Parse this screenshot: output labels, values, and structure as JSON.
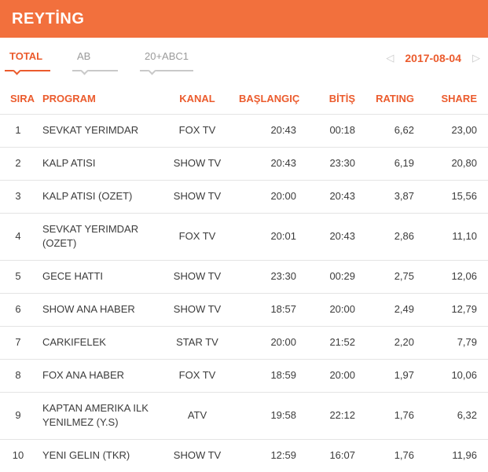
{
  "colors": {
    "header_bg": "#F2703D",
    "accent": "#EB5B2D",
    "inactive_tab": "#9B9B9B",
    "row_text": "#3C3C3C",
    "divider": "#E4E4E4"
  },
  "header": {
    "title": "REYTİNG"
  },
  "tabs": [
    {
      "label": "TOTAL",
      "active": true
    },
    {
      "label": "AB",
      "active": false
    },
    {
      "label": "20+ABC1",
      "active": false
    }
  ],
  "date_nav": {
    "prev_icon": "◁",
    "date": "2017-08-04",
    "next_icon": "▷"
  },
  "table": {
    "columns": [
      "SIRA",
      "PROGRAM",
      "KANAL",
      "BAŞLANGIÇ",
      "BİTİŞ",
      "RATING",
      "SHARE"
    ],
    "rows": [
      {
        "sira": "1",
        "program": "SEVKAT YERIMDAR",
        "kanal": "FOX TV",
        "baslangic": "20:43",
        "bitis": "00:18",
        "rating": "6,62",
        "share": "23,00"
      },
      {
        "sira": "2",
        "program": "KALP ATISI",
        "kanal": "SHOW TV",
        "baslangic": "20:43",
        "bitis": "23:30",
        "rating": "6,19",
        "share": "20,80"
      },
      {
        "sira": "3",
        "program": "KALP ATISI (OZET)",
        "kanal": "SHOW TV",
        "baslangic": "20:00",
        "bitis": "20:43",
        "rating": "3,87",
        "share": "15,56"
      },
      {
        "sira": "4",
        "program": "SEVKAT YERIMDAR (OZET)",
        "kanal": "FOX TV",
        "baslangic": "20:01",
        "bitis": "20:43",
        "rating": "2,86",
        "share": "11,10"
      },
      {
        "sira": "5",
        "program": "GECE HATTI",
        "kanal": "SHOW TV",
        "baslangic": "23:30",
        "bitis": "00:29",
        "rating": "2,75",
        "share": "12,06"
      },
      {
        "sira": "6",
        "program": "SHOW ANA HABER",
        "kanal": "SHOW TV",
        "baslangic": "18:57",
        "bitis": "20:00",
        "rating": "2,49",
        "share": "12,79"
      },
      {
        "sira": "7",
        "program": "CARKIFELEK",
        "kanal": "STAR TV",
        "baslangic": "20:00",
        "bitis": "21:52",
        "rating": "2,20",
        "share": "7,79"
      },
      {
        "sira": "8",
        "program": "FOX ANA HABER",
        "kanal": "FOX TV",
        "baslangic": "18:59",
        "bitis": "20:00",
        "rating": "1,97",
        "share": "10,06"
      },
      {
        "sira": "9",
        "program": "KAPTAN AMERIKA ILK YENILMEZ (Y.S)",
        "kanal": "ATV",
        "baslangic": "19:58",
        "bitis": "22:12",
        "rating": "1,76",
        "share": "6,32"
      },
      {
        "sira": "10",
        "program": "YENI GELIN (TKR)",
        "kanal": "SHOW TV",
        "baslangic": "12:59",
        "bitis": "16:07",
        "rating": "1,76",
        "share": "11,96"
      }
    ]
  }
}
